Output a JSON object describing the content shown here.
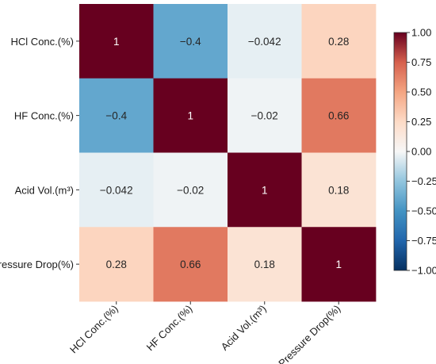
{
  "chart_data": {
    "type": "heatmap",
    "rows": [
      "HCl Conc.(%)",
      "HF Conc.(%)",
      "Acid Vol.(m³)",
      "Pressure Drop(%)"
    ],
    "columns": [
      "HCl Conc.(%)",
      "HF Conc.(%)",
      "Acid Vol.(m³)",
      "Pressure Drop(%)"
    ],
    "values": [
      [
        1,
        -0.4,
        -0.042,
        0.28
      ],
      [
        -0.4,
        1,
        -0.02,
        0.66
      ],
      [
        -0.042,
        -0.02,
        1,
        0.18
      ],
      [
        0.28,
        0.66,
        0.18,
        1
      ]
    ],
    "cell_labels": [
      [
        "1",
        "−0.4",
        "−0.042",
        "0.28"
      ],
      [
        "−0.4",
        "1",
        "−0.02",
        "0.66"
      ],
      [
        "−0.042",
        "−0.02",
        "1",
        "0.18"
      ],
      [
        "0.28",
        "0.66",
        "0.18",
        "1"
      ]
    ],
    "colorbar": {
      "range": [
        -1.0,
        1.0
      ],
      "ticks": [
        "1.00",
        "0.75",
        "0.50",
        "0.25",
        "0.00",
        "−0.25",
        "−0.50",
        "−0.75",
        "−1.00"
      ],
      "colormap": "RdBu_r",
      "low_color": "#053061",
      "mid_color": "#f7f7f7",
      "high_color": "#67001f"
    },
    "title": "",
    "xlabel": "",
    "ylabel": ""
  }
}
